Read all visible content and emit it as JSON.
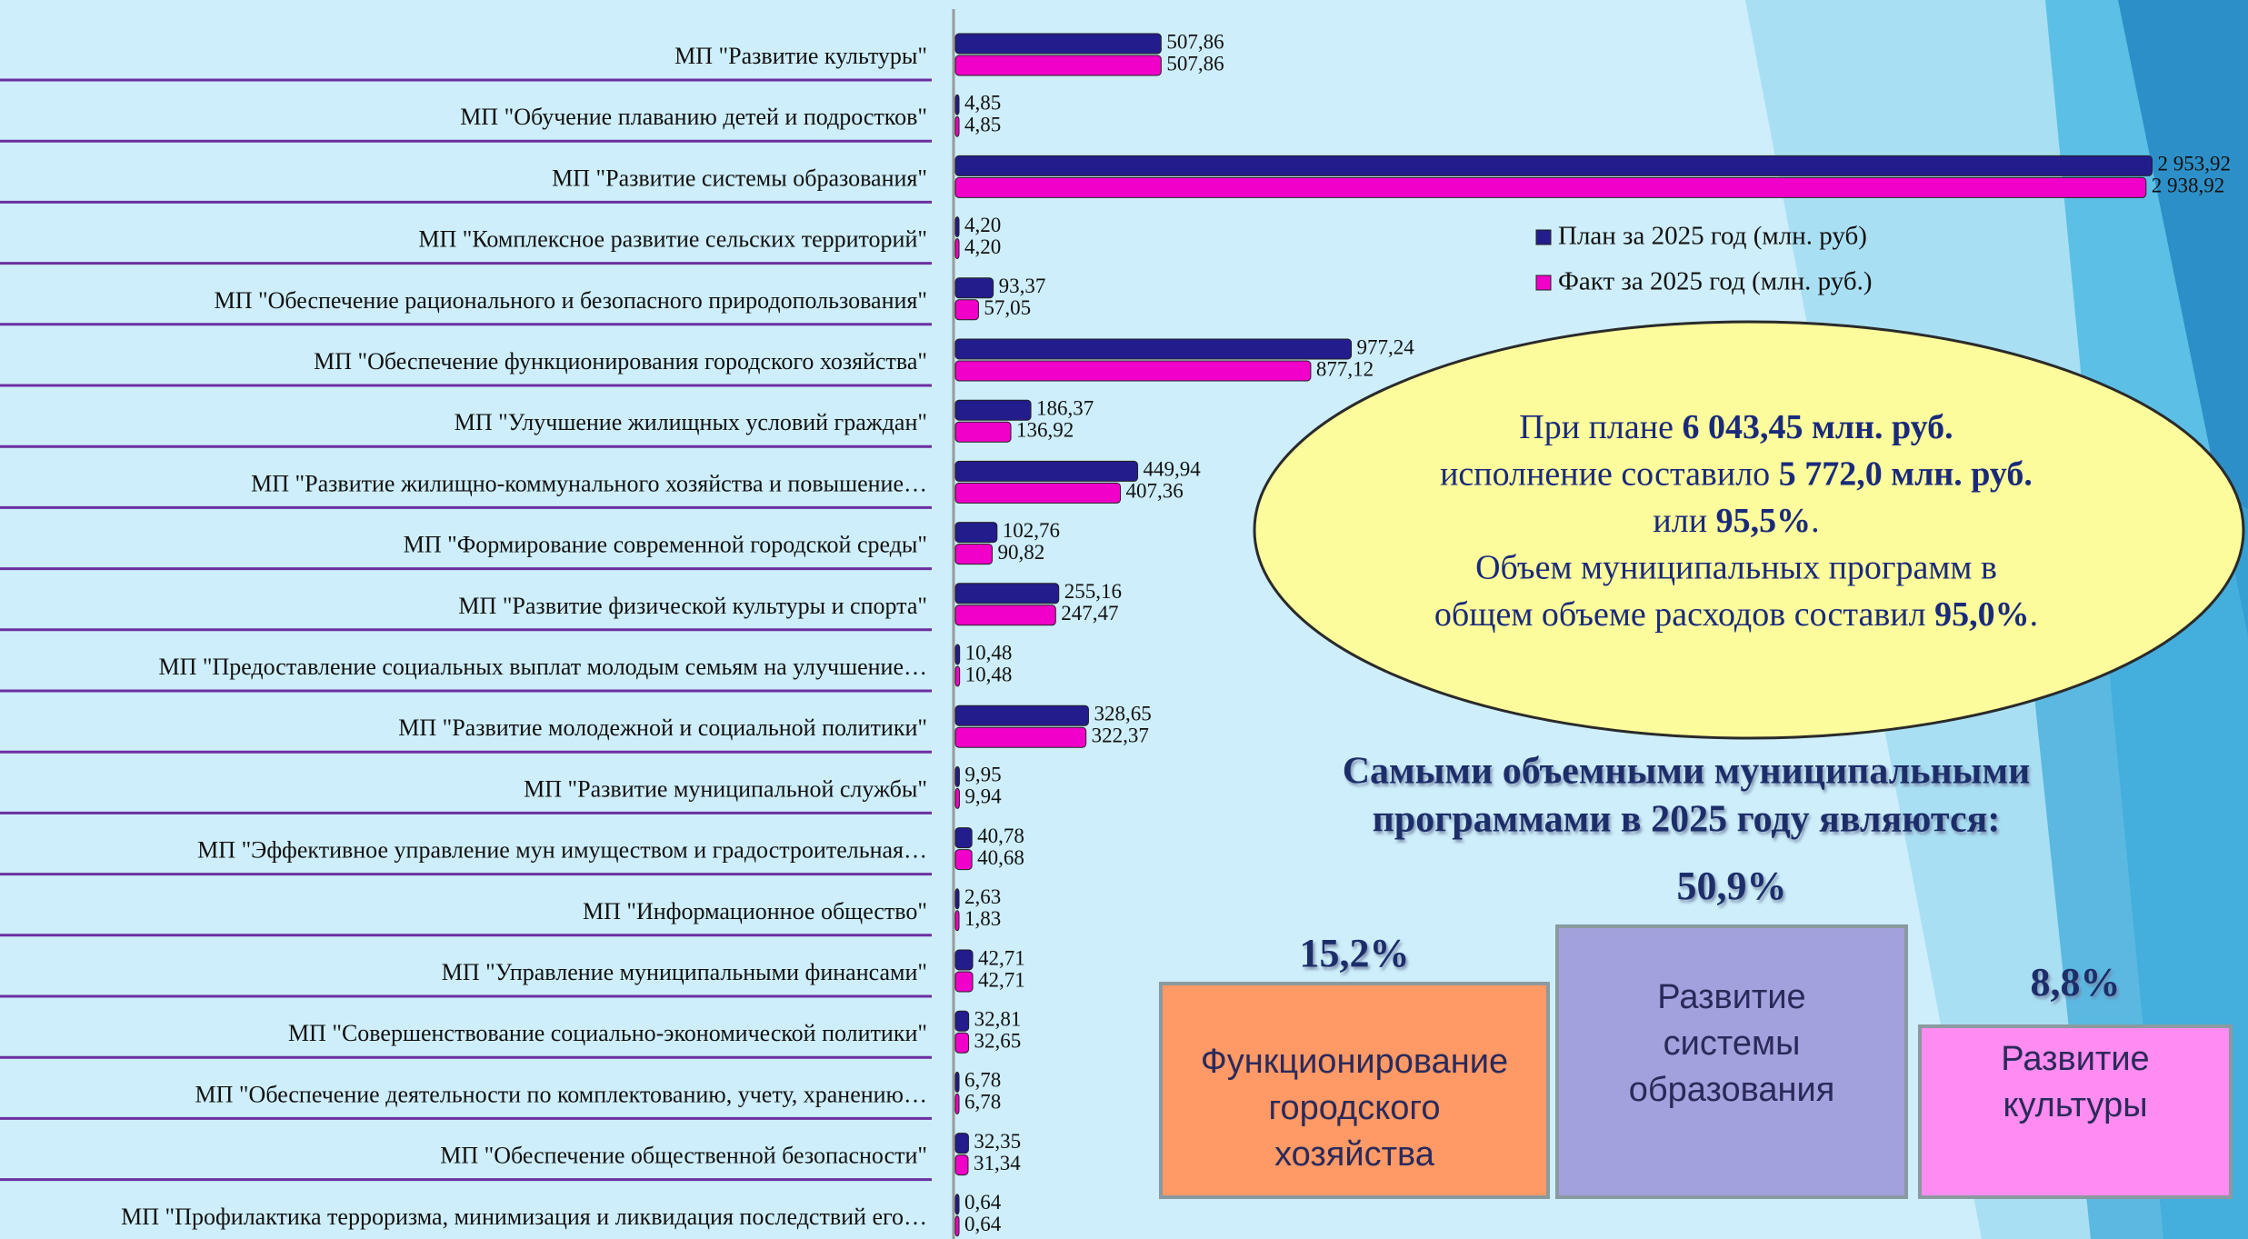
{
  "chart_data": {
    "type": "bar",
    "orientation": "horizontal",
    "categories": [
      "МП \"Развитие культуры\"",
      "МП \"Обучение плаванию детей и подростков\"",
      "МП \"Развитие системы образования\"",
      "МП \"Комплексное развитие сельских территорий\"",
      "МП \"Обеспечение рационального и безопасного природопользования\"",
      "МП \"Обеспечение функционирования городского хозяйства\"",
      "МП \"Улучшение жилищных условий граждан\"",
      "МП \"Развитие жилищно-коммунального хозяйства и повышение…",
      "МП \"Формирование современной городской среды\"",
      "МП \"Развитие физической культуры и спорта\"",
      "МП \"Предоставление социальных выплат молодым семьям на улучшение…",
      "МП \"Развитие молодежной и социальной политики\"",
      "МП \"Развитие муниципальной службы\"",
      "МП \"Эффективное управление мун имуществом и градостроительная…",
      "МП \"Информационное общество\"",
      "МП \"Управление муниципальными финансами\"",
      "МП \"Совершенствование социально-экономической политики\"",
      "МП \"Обеспечение деятельности по комплектованию, учету, хранению…",
      "МП \"Обеспечение общественной безопасности\"",
      "МП \"Профилактика терроризма, минимизация и ликвидация последствий его…"
    ],
    "series": [
      {
        "name": "План за 2025 год (млн. руб)",
        "color": "#231c8c",
        "values": [
          507.86,
          4.85,
          2953.92,
          4.2,
          93.37,
          977.24,
          186.37,
          449.94,
          102.76,
          255.16,
          10.48,
          328.65,
          9.95,
          40.78,
          2.63,
          42.71,
          32.81,
          6.78,
          32.35,
          0.64
        ],
        "value_labels": [
          "507,86",
          "4,85",
          "2 953,92",
          "4,20",
          "93,37",
          "977,24",
          "186,37",
          "449,94",
          "102,76",
          "255,16",
          "10,48",
          "328,65",
          "9,95",
          "40,78",
          "2,63",
          "42,71",
          "32,81",
          "6,78",
          "32,35",
          "0,64"
        ]
      },
      {
        "name": "Факт за 2025 год (млн. руб.)",
        "color": "#f000c8",
        "values": [
          507.86,
          4.85,
          2938.92,
          4.2,
          57.05,
          877.12,
          136.92,
          407.36,
          90.82,
          247.47,
          10.48,
          322.37,
          9.94,
          40.68,
          1.83,
          42.71,
          32.65,
          6.78,
          31.34,
          0.64
        ],
        "value_labels": [
          "507,86",
          "4,85",
          "2 938,92",
          "4,20",
          "57,05",
          "877,12",
          "136,92",
          "407,36",
          "90,82",
          "247,47",
          "10,48",
          "322,37",
          "9,94",
          "40,68",
          "1,83",
          "42,71",
          "32,65",
          "6,78",
          "31,34",
          "0,64"
        ]
      }
    ],
    "xlim": [
      0,
      3000
    ]
  },
  "callout": {
    "lines": [
      [
        {
          "text": "При плане "
        },
        {
          "text": "6 043,45 млн. руб.",
          "bold": true
        }
      ],
      [
        {
          "text": "исполнение составило "
        },
        {
          "text": "5 772,0 млн. руб.",
          "bold": true
        }
      ],
      [
        {
          "text": "или "
        },
        {
          "text": "95,5%",
          "bold": true
        },
        {
          "text": "."
        }
      ],
      [
        {
          "text": "Объем муниципальных программ в"
        }
      ],
      [
        {
          "text": "общем объеме расходов составил "
        },
        {
          "text": "95,0%",
          "bold": true
        },
        {
          "text": "."
        }
      ]
    ]
  },
  "heading": [
    "Самыми объемными муниципальными",
    "программами в 2025 году являются:"
  ],
  "highlights": [
    {
      "percent": "15,2%",
      "lines": [
        "Функционирование",
        "городского",
        "хозяйства"
      ]
    },
    {
      "percent": "50,9%",
      "lines": [
        "Развитие",
        "системы",
        "образования"
      ]
    },
    {
      "percent": "8,8%",
      "lines": [
        "Развитие",
        "культуры"
      ]
    }
  ]
}
